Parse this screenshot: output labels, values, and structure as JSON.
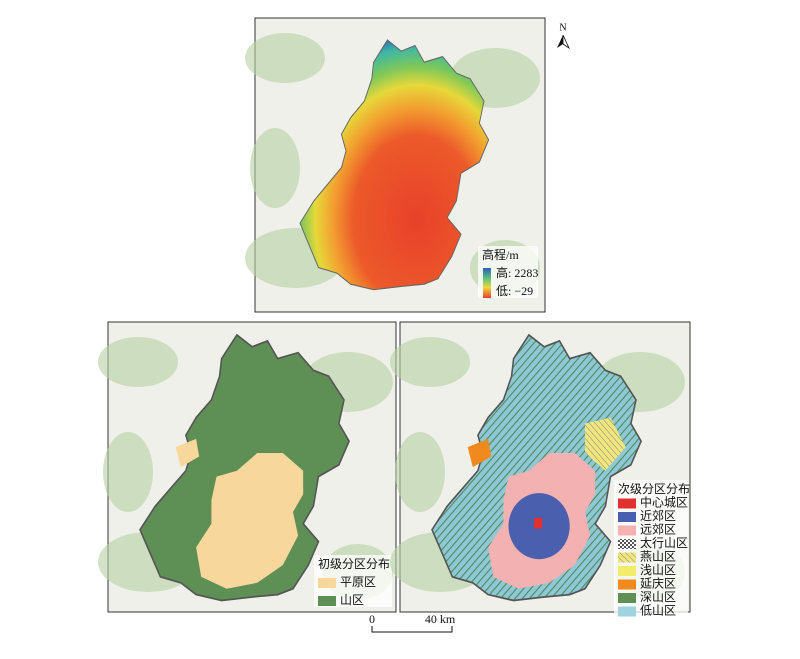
{
  "panels": [
    {
      "north": "N",
      "legend": {
        "title": "高程/m",
        "items": [
          "高: 2283",
          "低: −29"
        ]
      }
    },
    {
      "legend": {
        "title": "初级分区分布",
        "items": [
          "平原区",
          "山区"
        ]
      }
    },
    {
      "legend": {
        "title": "次级分区分布",
        "items": [
          "中心城区",
          "近郊区",
          "远郊区",
          "太行山区",
          "燕山区",
          "浅山区",
          "延庆区",
          "深山区",
          "低山区"
        ]
      }
    }
  ],
  "scale_bar": {
    "labels": [
      "0",
      "40 km"
    ]
  }
}
